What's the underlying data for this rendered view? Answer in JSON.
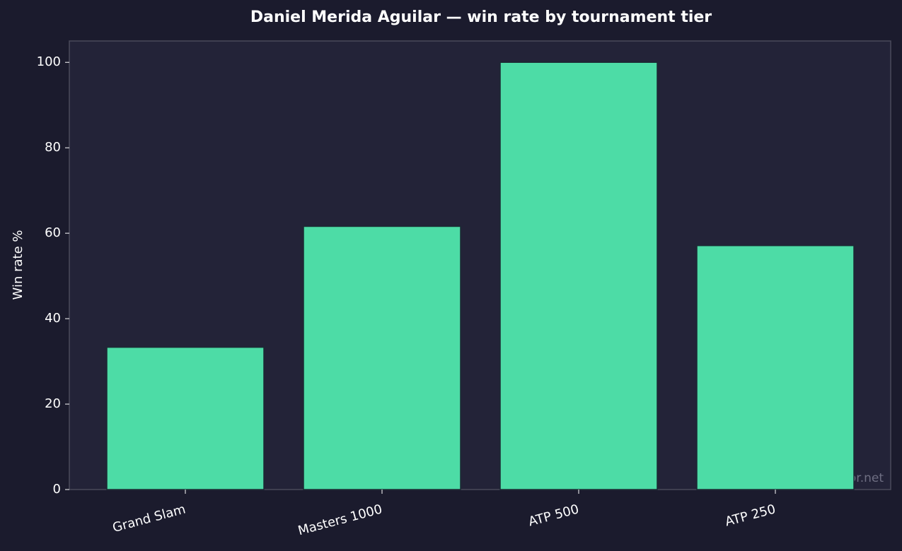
{
  "chart_data": {
    "type": "bar",
    "title": "Daniel Merida Aguilar — win rate by tournament tier",
    "y_label": "Win rate %",
    "categories": [
      "Grand Slam",
      "Masters 1000",
      "ATP 500",
      "ATP 250"
    ],
    "values": [
      33.3,
      61.6,
      100,
      57.1
    ],
    "color": "#4ddca6",
    "ylim": [
      0,
      105
    ],
    "yticks": [
      0,
      20,
      40,
      60,
      80,
      100
    ],
    "grid": false,
    "annotation": "tennispredictor.net"
  }
}
